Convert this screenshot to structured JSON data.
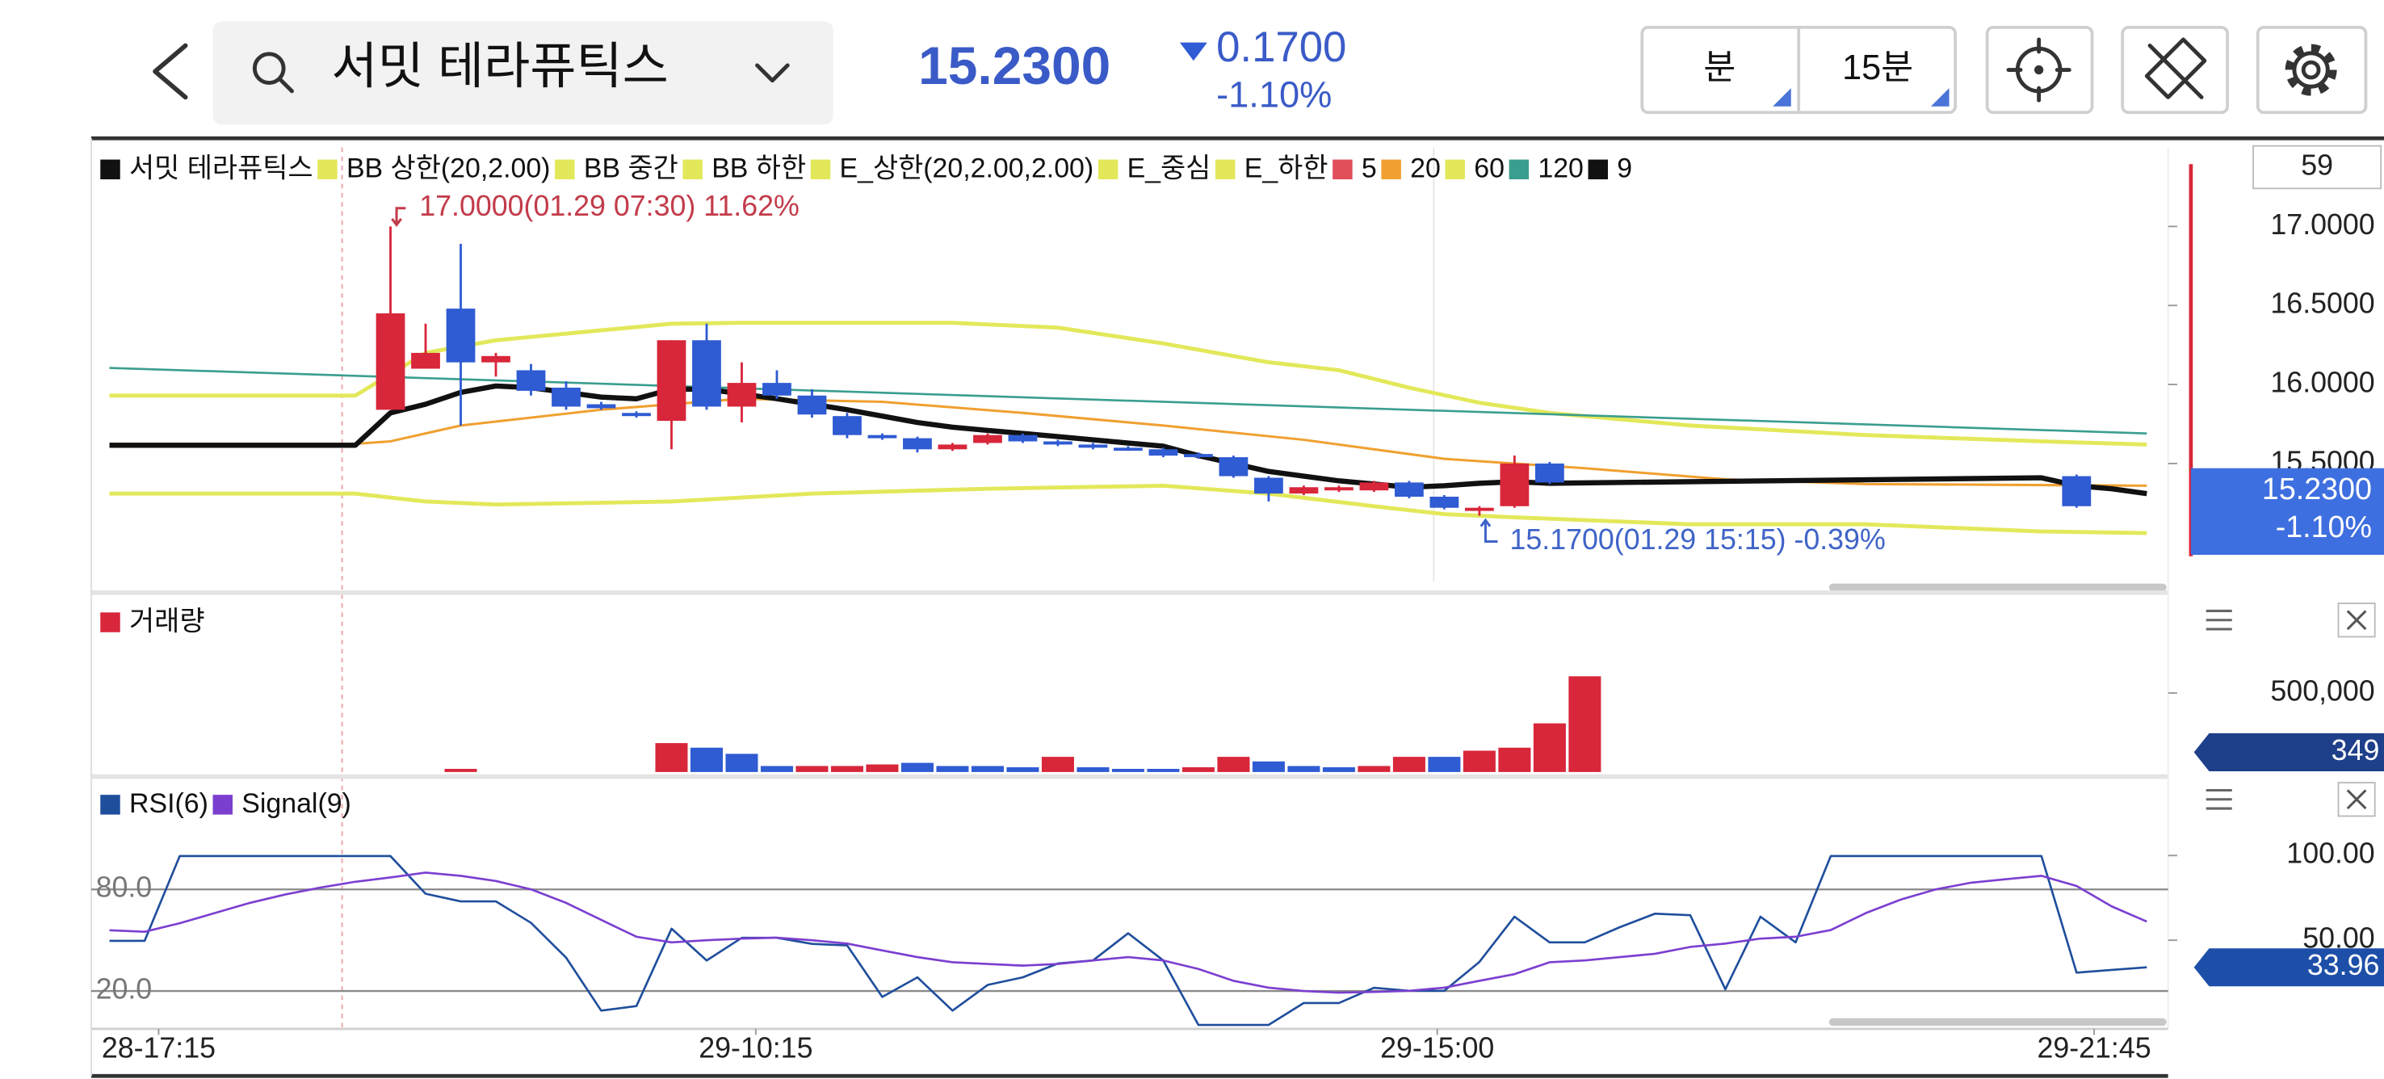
{
  "header": {
    "stock_name": "서밋 테라퓨틱스",
    "price": "15.2300",
    "change": "0.1700",
    "change_pct": "-1.10%",
    "period_unit": "분",
    "period": "15분"
  },
  "chart_data": [
    {
      "type": "candlestick",
      "xlim": [
        0,
        58
      ],
      "ylim": [
        14.75,
        17.5
      ],
      "yticks": [
        {
          "value": 17,
          "label": "17.0000"
        },
        {
          "value": 16.5,
          "label": "16.5000"
        },
        {
          "value": 16,
          "label": "16.0000"
        },
        {
          "value": 15.5,
          "label": "15.5000"
        }
      ],
      "top_label": "59",
      "up_color": "#d8263a",
      "down_color": "#2f5bd3",
      "series": [
        {
          "name": "서밋 테라퓨틱스",
          "color": "#111111",
          "x": [
            8,
            9,
            10,
            11,
            12,
            13,
            14,
            15,
            16,
            17,
            18,
            19,
            20,
            21,
            22,
            23,
            24,
            25,
            26,
            27,
            28,
            29,
            30,
            31,
            32,
            33,
            34,
            35,
            36,
            37,
            38,
            39,
            40,
            41,
            56
          ],
          "open": [
            15.84,
            16.1,
            16.48,
            16.14,
            16.09,
            15.98,
            15.875,
            15.82,
            15.77,
            16.28,
            15.86,
            16.01,
            15.93,
            15.8,
            15.68,
            15.66,
            15.59,
            15.63,
            15.68,
            15.64,
            15.62,
            15.6,
            15.59,
            15.56,
            15.54,
            15.41,
            15.31,
            15.33,
            15.33,
            15.38,
            15.29,
            15.2,
            15.23,
            15.5,
            15.42
          ],
          "high": [
            17.0,
            16.385,
            16.89,
            16.2,
            16.13,
            16.02,
            15.89,
            15.83,
            16.28,
            16.385,
            16.14,
            16.09,
            15.97,
            15.82,
            15.69,
            15.67,
            15.63,
            15.69,
            15.69,
            15.65,
            15.63,
            15.61,
            15.6,
            15.57,
            15.55,
            15.42,
            15.36,
            15.36,
            15.39,
            15.39,
            15.3,
            15.23,
            15.55,
            15.51,
            15.43
          ],
          "low": [
            15.84,
            16.1,
            15.74,
            16.05,
            15.93,
            15.84,
            15.84,
            15.79,
            15.59,
            15.84,
            15.76,
            15.91,
            15.79,
            15.66,
            15.65,
            15.57,
            15.58,
            15.62,
            15.63,
            15.61,
            15.59,
            15.58,
            15.54,
            15.53,
            15.41,
            15.26,
            15.3,
            15.32,
            15.32,
            15.28,
            15.21,
            15.17,
            15.22,
            15.37,
            15.22
          ],
          "close": [
            16.45,
            16.2,
            16.14,
            16.18,
            15.96,
            15.86,
            15.85,
            15.8,
            16.28,
            15.86,
            16.01,
            15.93,
            15.81,
            15.68,
            15.66,
            15.59,
            15.62,
            15.68,
            15.64,
            15.62,
            15.6,
            15.59,
            15.55,
            15.54,
            15.42,
            15.31,
            15.35,
            15.35,
            15.38,
            15.29,
            15.22,
            15.22,
            15.5,
            15.38,
            15.23
          ]
        },
        {
          "name": "BB 상한(20,2.00)",
          "color": "#e3e85a",
          "line_width": 2.6,
          "x": [
            0,
            7,
            9,
            11,
            16,
            18,
            24,
            27,
            30,
            33,
            35,
            37,
            39,
            41,
            45,
            50,
            55,
            58
          ],
          "values": [
            15.93,
            15.93,
            16.2,
            16.28,
            16.385,
            16.39,
            16.39,
            16.36,
            16.26,
            16.14,
            16.09,
            15.98,
            15.885,
            15.82,
            15.74,
            15.68,
            15.64,
            15.62
          ]
        },
        {
          "name": "BB 중간",
          "color": "#e3e85a"
        },
        {
          "name": "BB 하한",
          "color": "#e3e85a",
          "line_width": 2.6,
          "x": [
            0,
            7,
            9,
            11,
            16,
            20,
            25,
            30,
            33,
            36,
            38,
            40,
            45,
            50,
            55,
            58
          ],
          "values": [
            15.31,
            15.31,
            15.26,
            15.24,
            15.26,
            15.31,
            15.34,
            15.36,
            15.31,
            15.23,
            15.18,
            15.16,
            15.115,
            15.115,
            15.07,
            15.06
          ]
        },
        {
          "name": "E_상한(20,2.00,2.00)",
          "color": "#e3e85a"
        },
        {
          "name": "E_중심",
          "color": "#e3e85a"
        },
        {
          "name": "E_하한",
          "color": "#e3e85a"
        },
        {
          "name": "5",
          "color": "#e0505a"
        },
        {
          "name": "20",
          "color": "#f0a030",
          "line_width": 1.6,
          "x": [
            0,
            7,
            8,
            10,
            14,
            18,
            22,
            26,
            30,
            34,
            38,
            42,
            46,
            50,
            58
          ],
          "values": [
            15.625,
            15.625,
            15.64,
            15.74,
            15.84,
            15.91,
            15.89,
            15.82,
            15.74,
            15.65,
            15.53,
            15.47,
            15.4,
            15.37,
            15.36
          ]
        },
        {
          "name": "60",
          "color": "#e3e85a"
        },
        {
          "name": "120",
          "color": "#3a9e8e",
          "line_width": 1.4,
          "x": [
            0,
            58
          ],
          "values": [
            16.105,
            15.69
          ]
        },
        {
          "name": "9",
          "color": "#111111",
          "line_width": 3.4,
          "x": [
            0,
            7,
            8,
            9,
            10,
            11,
            12,
            13,
            14,
            15,
            16,
            17,
            18,
            19,
            20,
            21,
            22,
            23,
            24,
            25,
            26,
            27,
            28,
            29,
            30,
            31,
            32,
            33,
            34,
            35,
            36,
            37,
            38,
            39,
            40,
            41,
            55,
            56,
            57,
            58
          ],
          "values": [
            15.615,
            15.615,
            15.82,
            15.875,
            15.95,
            15.99,
            15.98,
            15.95,
            15.92,
            15.91,
            15.97,
            15.97,
            15.94,
            15.91,
            15.875,
            15.84,
            15.8,
            15.76,
            15.73,
            15.71,
            15.69,
            15.67,
            15.65,
            15.63,
            15.61,
            15.55,
            15.5,
            15.45,
            15.42,
            15.39,
            15.37,
            15.35,
            15.36,
            15.375,
            15.385,
            15.375,
            15.41,
            15.36,
            15.34,
            15.31
          ]
        }
      ],
      "annotations": [
        {
          "label": "17.0000(01.29 07:30) 11.62%",
          "x": 8,
          "value": 17.0,
          "color": "#c23b4a",
          "side": "above"
        },
        {
          "label": "15.1700(01.29 15:15) -0.39%",
          "x": 39,
          "value": 15.17,
          "color": "#3f64c8",
          "side": "below"
        }
      ],
      "last": {
        "value": 15.23,
        "label": "15.2300",
        "change": "-1.10%",
        "color": "#3e6fe0"
      }
    },
    {
      "type": "bar",
      "xlim": [
        0,
        58
      ],
      "ylim": [
        0,
        1087000
      ],
      "yticks": [
        {
          "value": 500000,
          "label": "500,000"
        }
      ],
      "series": [
        {
          "name": "거래량",
          "color": "#d8263a",
          "x": [
            10,
            16,
            17,
            18,
            19,
            20,
            21,
            22,
            23,
            24,
            25,
            26,
            27,
            28,
            29,
            30,
            31,
            32,
            33,
            34,
            35,
            36,
            37,
            38,
            39,
            40,
            41,
            42
          ],
          "values": [
            20000,
            183000,
            154000,
            115000,
            38000,
            38000,
            38000,
            48000,
            58000,
            38000,
            38000,
            30000,
            96000,
            30000,
            20000,
            20000,
            30000,
            96000,
            67000,
            38000,
            30000,
            38000,
            96000,
            96000,
            135000,
            154000,
            308000,
            606000
          ],
          "colors": [
            "#d8263a",
            "#d8263a",
            "#2f5bd3",
            "#2f5bd3",
            "#2f5bd3",
            "#d8263a",
            "#d8263a",
            "#d8263a",
            "#2f5bd3",
            "#2f5bd3",
            "#2f5bd3",
            "#2f5bd3",
            "#d8263a",
            "#2f5bd3",
            "#2f5bd3",
            "#2f5bd3",
            "#d8263a",
            "#d8263a",
            "#2f5bd3",
            "#2f5bd3",
            "#2f5bd3",
            "#d8263a",
            "#d8263a",
            "#2f5bd3",
            "#d8263a",
            "#d8263a",
            "#d8263a",
            "#d8263a"
          ]
        }
      ],
      "last": {
        "value": 349,
        "label": "349",
        "color": "#1e3f8a"
      }
    },
    {
      "type": "line",
      "xlim": [
        0,
        58
      ],
      "ylim": [
        0,
        143
      ],
      "yticks": [
        {
          "value": 100,
          "label": "100.00"
        },
        {
          "value": 50,
          "label": "50.00"
        }
      ],
      "guide_lines": [
        {
          "value": 80,
          "label": "80.0"
        },
        {
          "value": 20,
          "label": "20.0"
        }
      ],
      "xticks": [
        {
          "value": 1.4,
          "label": "28-17:15"
        },
        {
          "value": 18.4,
          "label": "29-10:15"
        },
        {
          "value": 37.8,
          "label": "29-15:00"
        },
        {
          "value": 56.5,
          "label": "29-21:45"
        }
      ],
      "series": [
        {
          "name": "RSI(6)",
          "color": "#1f4e9c",
          "line_width": 1.4,
          "values": [
            49.6,
            49.6,
            99.7,
            99.7,
            99.7,
            99.7,
            99.7,
            99.7,
            99.7,
            77.4,
            72.9,
            72.9,
            60.3,
            39.7,
            8.4,
            11.1,
            56.8,
            38.0,
            51.4,
            51.4,
            47.8,
            46.9,
            16.5,
            28.1,
            8.4,
            23.6,
            28.1,
            36.2,
            38.0,
            54.1,
            38.0,
            0,
            0,
            0,
            12.9,
            12.9,
            21.9,
            20.1,
            20.1,
            37.1,
            63.9,
            48.7,
            48.7,
            57.7,
            65.7,
            64.8,
            21.0,
            63.9,
            48.7,
            99.7,
            99.7,
            99.7,
            99.7,
            99.7,
            99.7,
            99.7,
            30.9,
            32.5,
            33.96
          ]
        },
        {
          "name": "Signal(9)",
          "color": "#7b3fd0",
          "line_width": 1.4,
          "values": [
            55.9,
            55.0,
            60,
            66,
            72,
            77,
            81,
            84.5,
            87,
            89.9,
            88,
            85,
            80,
            72,
            62,
            52,
            48.7,
            50,
            51,
            51.5,
            50,
            48,
            44,
            40,
            37,
            36,
            35,
            36,
            38,
            40,
            38,
            33,
            26,
            22,
            20,
            19,
            19.5,
            20.1,
            22,
            26,
            30,
            37,
            38,
            40,
            42,
            46,
            48,
            51,
            52,
            56,
            66,
            74,
            80,
            84,
            86,
            88,
            82,
            70,
            61
          ]
        }
      ],
      "last": {
        "value": 33.96,
        "label": "33.96",
        "color": "#1d4fa8"
      }
    }
  ]
}
